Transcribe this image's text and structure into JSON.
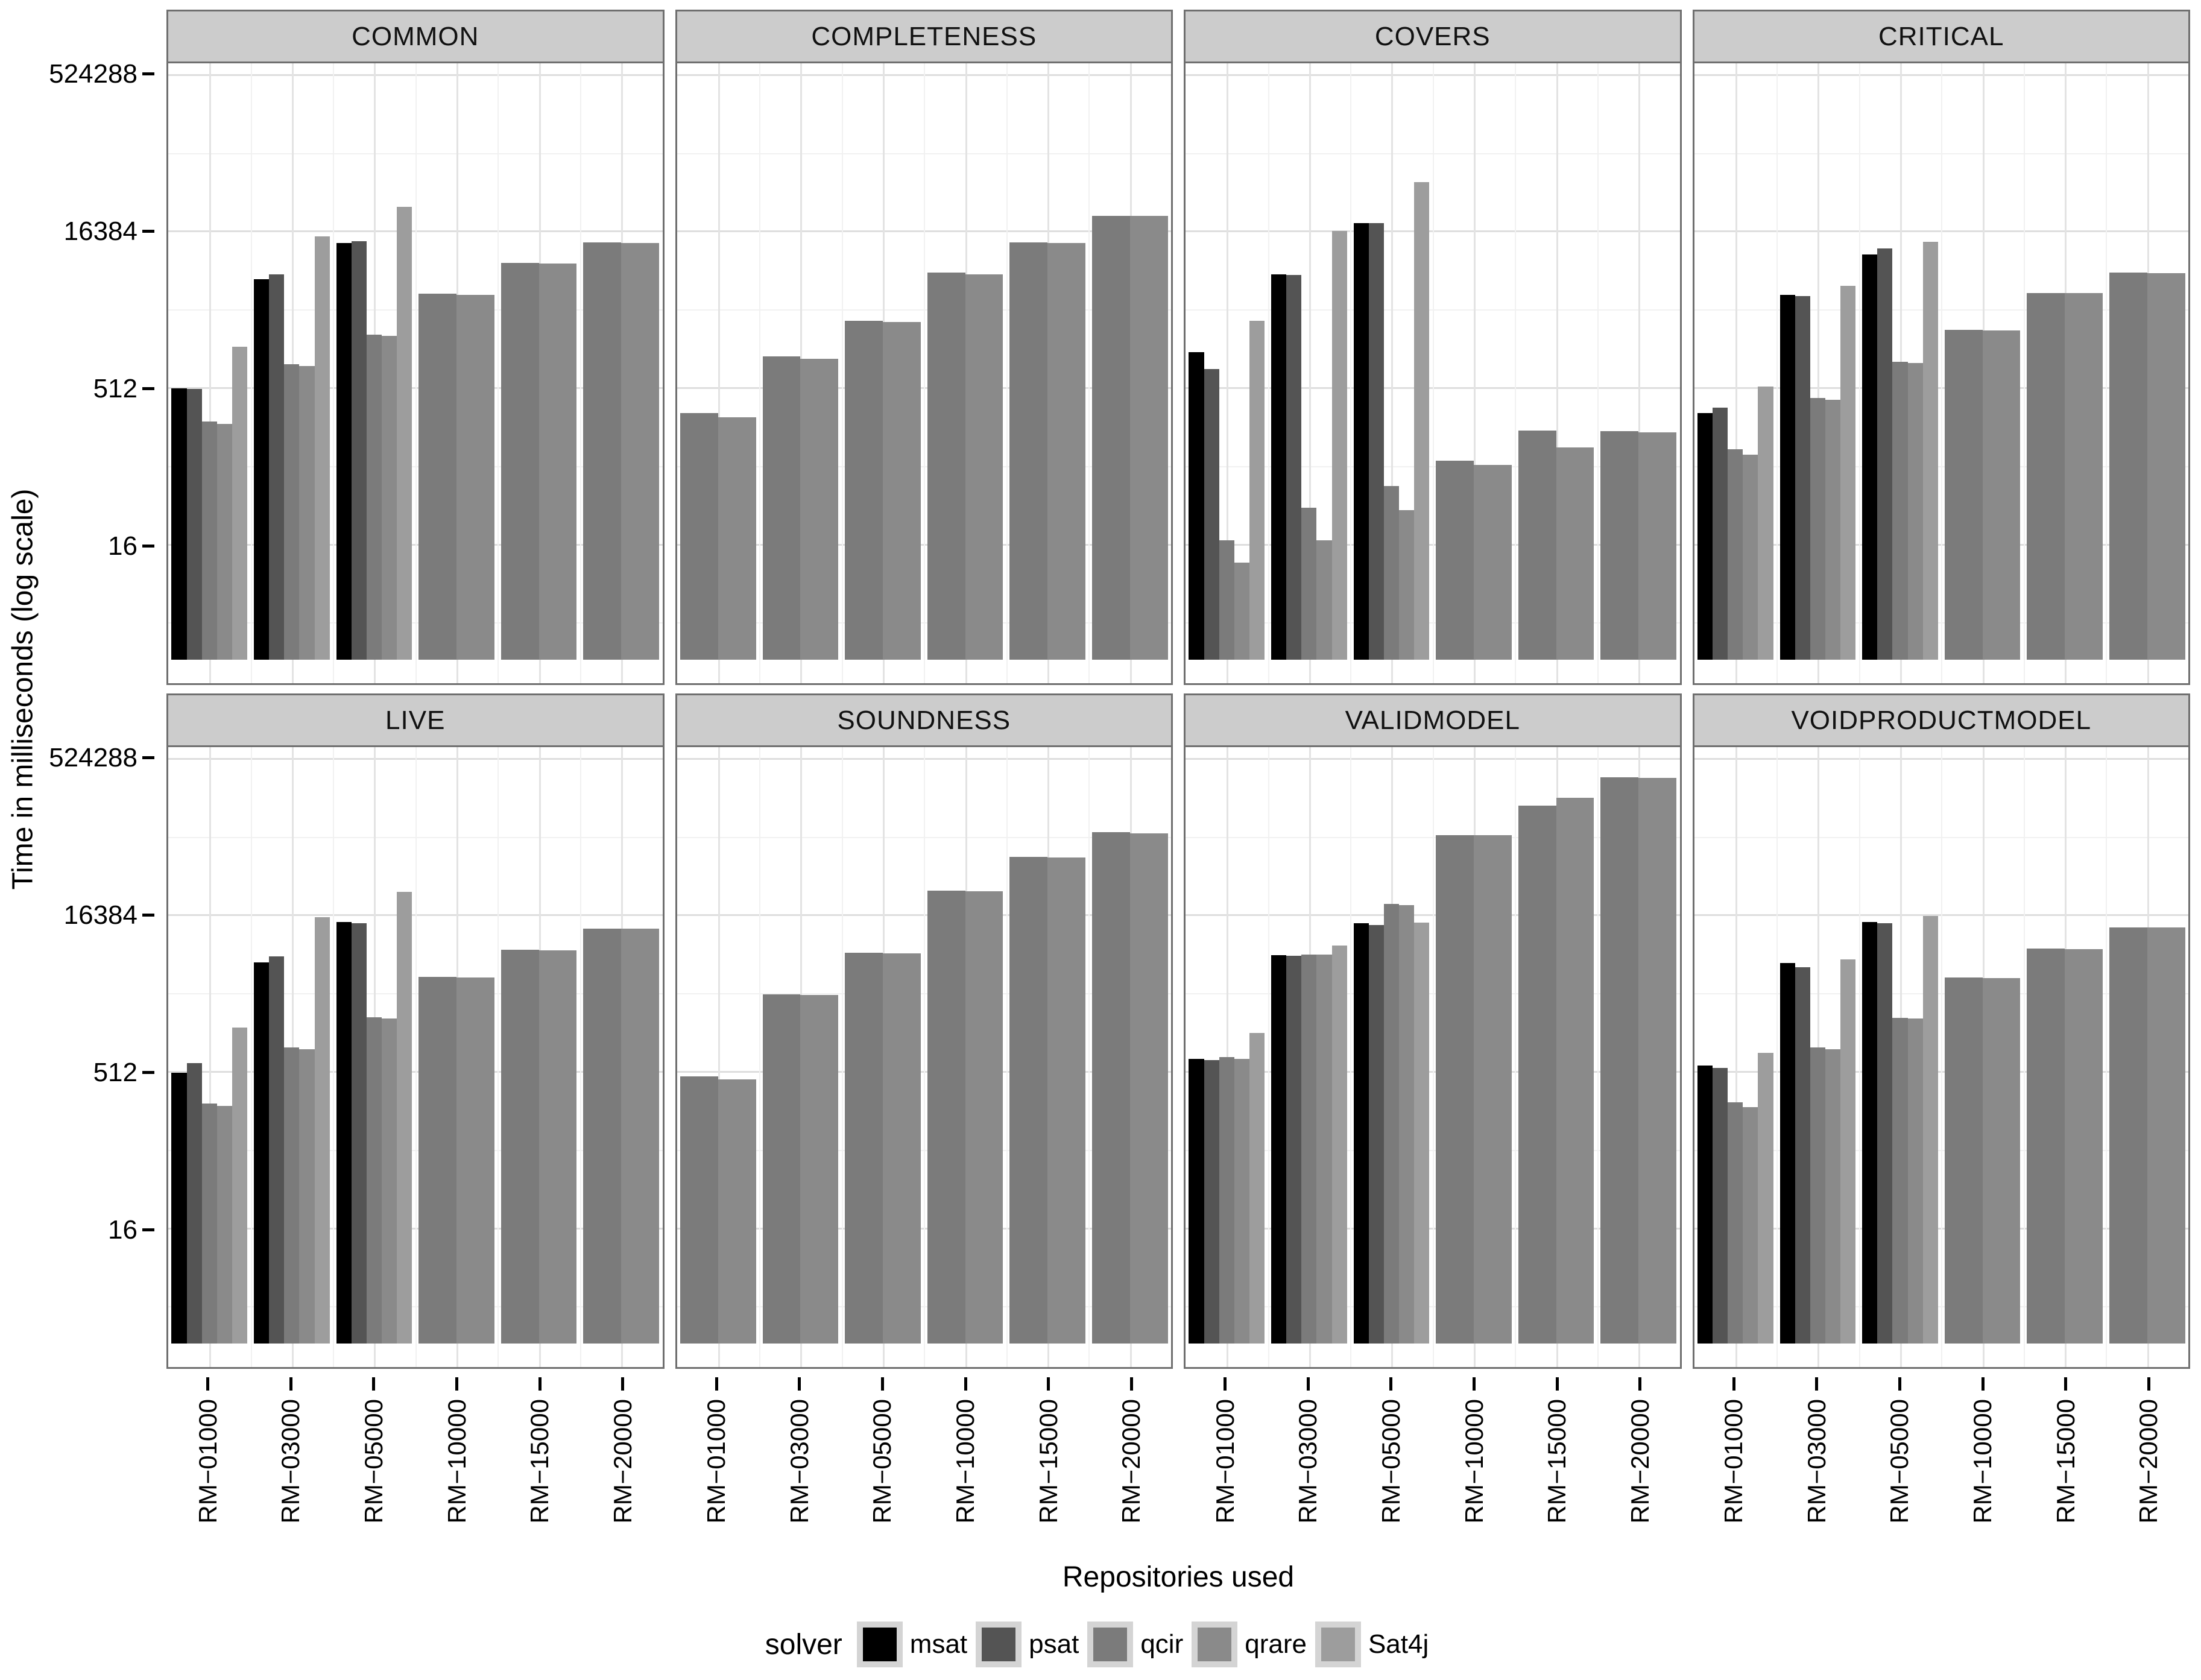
{
  "y_axis": {
    "title": "Time in milliseconds (log scale)",
    "ticks": [
      {
        "value": 16,
        "label": "16"
      },
      {
        "value": 512,
        "label": "512"
      },
      {
        "value": 16384,
        "label": "16384"
      },
      {
        "value": 524288,
        "label": "524288"
      }
    ]
  },
  "x_axis": {
    "title": "Repositories used",
    "categories": [
      "RM−01000",
      "RM−03000",
      "RM−05000",
      "RM−10000",
      "RM−15000",
      "RM−20000"
    ]
  },
  "legend": {
    "title": "solver",
    "entries": [
      {
        "label": "msat",
        "color": "#000000"
      },
      {
        "label": "psat",
        "color": "#545454"
      },
      {
        "label": "qcir",
        "color": "#7B7B7B"
      },
      {
        "label": "qrare",
        "color": "#8A8A8A"
      },
      {
        "label": "Sat4j",
        "color": "#9D9D9D"
      }
    ]
  },
  "chart_data": [
    {
      "type": "bar",
      "title": "COMMON",
      "categories": [
        "RM−01000",
        "RM−03000",
        "RM−05000",
        "RM−10000",
        "RM−15000",
        "RM−20000"
      ],
      "ylabel": "Time in milliseconds (log scale)",
      "yscale": "log2",
      "ylim": [
        1,
        900000
      ],
      "series": [
        {
          "name": "msat",
          "values": [
            520,
            5800,
            13000,
            null,
            null,
            null
          ]
        },
        {
          "name": "psat",
          "values": [
            510,
            6500,
            13500,
            null,
            null,
            null
          ]
        },
        {
          "name": "qcir",
          "values": [
            250,
            880,
            1700,
            4200,
            8300,
            13200
          ]
        },
        {
          "name": "qrare",
          "values": [
            235,
            850,
            1650,
            4100,
            8200,
            13000
          ]
        },
        {
          "name": "Sat4j",
          "values": [
            1300,
            15000,
            29000,
            null,
            null,
            null
          ]
        }
      ]
    },
    {
      "type": "bar",
      "title": "COMPLETENESS",
      "categories": [
        "RM−01000",
        "RM−03000",
        "RM−05000",
        "RM−10000",
        "RM−15000",
        "RM−20000"
      ],
      "yscale": "log2",
      "series": [
        {
          "name": "msat",
          "values": [
            null,
            null,
            null,
            null,
            null,
            null
          ]
        },
        {
          "name": "psat",
          "values": [
            null,
            null,
            null,
            null,
            null,
            null
          ]
        },
        {
          "name": "qcir",
          "values": [
            300,
            1050,
            2300,
            6700,
            13200,
            23500
          ]
        },
        {
          "name": "qrare",
          "values": [
            275,
            1000,
            2250,
            6500,
            13000,
            23500
          ]
        },
        {
          "name": "Sat4j",
          "values": [
            null,
            null,
            null,
            null,
            null,
            null
          ]
        }
      ]
    },
    {
      "type": "bar",
      "title": "COVERS",
      "categories": [
        "RM−01000",
        "RM−03000",
        "RM−05000",
        "RM−10000",
        "RM−15000",
        "RM−20000"
      ],
      "yscale": "log2",
      "series": [
        {
          "name": "msat",
          "values": [
            1150,
            6500,
            20000,
            null,
            null,
            null
          ]
        },
        {
          "name": "psat",
          "values": [
            800,
            6400,
            20000,
            null,
            null,
            null
          ]
        },
        {
          "name": "qcir",
          "values": [
            18,
            37,
            60,
            105,
            205,
            200
          ]
        },
        {
          "name": "qrare",
          "values": [
            11,
            18,
            35,
            95,
            140,
            195
          ]
        },
        {
          "name": "Sat4j",
          "values": [
            2300,
            17000,
            50000,
            null,
            null,
            null
          ]
        }
      ]
    },
    {
      "type": "bar",
      "title": "CRITICAL",
      "categories": [
        "RM−01000",
        "RM−03000",
        "RM−05000",
        "RM−10000",
        "RM−15000",
        "RM−20000"
      ],
      "yscale": "log2",
      "series": [
        {
          "name": "msat",
          "values": [
            300,
            4100,
            10000,
            null,
            null,
            null
          ]
        },
        {
          "name": "psat",
          "values": [
            340,
            4000,
            11500,
            null,
            null,
            null
          ]
        },
        {
          "name": "qcir",
          "values": [
            135,
            420,
            930,
            1900,
            4300,
            6700
          ]
        },
        {
          "name": "qrare",
          "values": [
            120,
            400,
            910,
            1870,
            4250,
            6650
          ]
        },
        {
          "name": "Sat4j",
          "values": [
            540,
            5000,
            13300,
            null,
            null,
            null
          ]
        }
      ]
    },
    {
      "type": "bar",
      "title": "LIVE",
      "categories": [
        "RM−01000",
        "RM−03000",
        "RM−05000",
        "RM−10000",
        "RM−15000",
        "RM−20000"
      ],
      "yscale": "log2",
      "series": [
        {
          "name": "msat",
          "values": [
            512,
            5900,
            14500,
            null,
            null,
            null
          ]
        },
        {
          "name": "psat",
          "values": [
            630,
            6700,
            14000,
            null,
            null,
            null
          ]
        },
        {
          "name": "qcir",
          "values": [
            260,
            900,
            1750,
            4300,
            7800,
            12500
          ]
        },
        {
          "name": "qrare",
          "values": [
            245,
            860,
            1700,
            4200,
            7700,
            12400
          ]
        },
        {
          "name": "Sat4j",
          "values": [
            1400,
            16000,
            28000,
            null,
            null,
            null
          ]
        }
      ]
    },
    {
      "type": "bar",
      "title": "SOUNDNESS",
      "categories": [
        "RM−01000",
        "RM−03000",
        "RM−05000",
        "RM−10000",
        "RM−15000",
        "RM−20000"
      ],
      "yscale": "log2",
      "series": [
        {
          "name": "msat",
          "values": [
            null,
            null,
            null,
            null,
            null,
            null
          ]
        },
        {
          "name": "psat",
          "values": [
            null,
            null,
            null,
            null,
            null,
            null
          ]
        },
        {
          "name": "qcir",
          "values": [
            475,
            2900,
            7300,
            29000,
            61000,
            105000
          ]
        },
        {
          "name": "qrare",
          "values": [
            440,
            2850,
            7200,
            28500,
            60000,
            103000
          ]
        },
        {
          "name": "Sat4j",
          "values": [
            null,
            null,
            null,
            null,
            null,
            null
          ]
        }
      ]
    },
    {
      "type": "bar",
      "title": "VALIDMODEL",
      "categories": [
        "RM−01000",
        "RM−03000",
        "RM−05000",
        "RM−10000",
        "RM−15000",
        "RM−20000"
      ],
      "yscale": "log2",
      "series": [
        {
          "name": "msat",
          "values": [
            700,
            6900,
            14000,
            null,
            null,
            null
          ]
        },
        {
          "name": "psat",
          "values": [
            680,
            6800,
            13500,
            null,
            null,
            null
          ]
        },
        {
          "name": "qcir",
          "values": [
            720,
            7000,
            21500,
            98000,
            190000,
            355000
          ]
        },
        {
          "name": "qrare",
          "values": [
            700,
            7000,
            21000,
            98000,
            225000,
            350000
          ]
        },
        {
          "name": "Sat4j",
          "values": [
            1230,
            8600,
            14200,
            null,
            null,
            null
          ]
        }
      ]
    },
    {
      "type": "bar",
      "title": "VOIDPRODUCTMODEL",
      "categories": [
        "RM−01000",
        "RM−03000",
        "RM−05000",
        "RM−10000",
        "RM−15000",
        "RM−20000"
      ],
      "yscale": "log2",
      "series": [
        {
          "name": "msat",
          "values": [
            600,
            5800,
            14500,
            null,
            null,
            null
          ]
        },
        {
          "name": "psat",
          "values": [
            570,
            5300,
            14000,
            null,
            null,
            null
          ]
        },
        {
          "name": "qcir",
          "values": [
            265,
            900,
            1730,
            4200,
            8000,
            12800
          ]
        },
        {
          "name": "qrare",
          "values": [
            240,
            860,
            1700,
            4150,
            7900,
            12700
          ]
        },
        {
          "name": "Sat4j",
          "values": [
            800,
            6300,
            16500,
            null,
            null,
            null
          ]
        }
      ]
    }
  ]
}
